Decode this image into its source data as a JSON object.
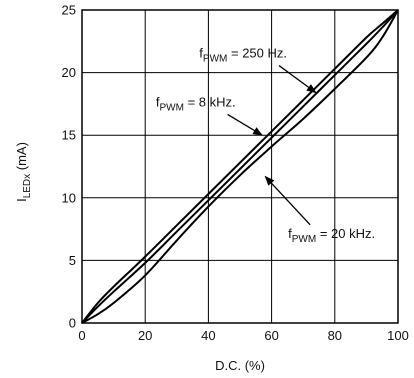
{
  "chart_data": {
    "type": "line",
    "title": "",
    "xlabel": "D.C. (%)",
    "ylabel": {
      "main": "I",
      "sub": "LEDx",
      "unit": " (mA)"
    },
    "xlim": [
      0,
      100
    ],
    "ylim": [
      0,
      25
    ],
    "xticks": [
      0,
      20,
      40,
      60,
      80,
      100
    ],
    "yticks": [
      0,
      5,
      10,
      15,
      20,
      25
    ],
    "grid": true,
    "series": [
      {
        "x": [
          0,
          5,
          10,
          20,
          30,
          40,
          50,
          60,
          70,
          80,
          90,
          95,
          100
        ],
        "y": [
          0,
          1.6,
          2.9,
          5.3,
          7.8,
          10.3,
          12.8,
          15.3,
          17.8,
          20.3,
          22.8,
          23.9,
          25
        ]
      },
      {
        "x": [
          0,
          5,
          10,
          20,
          30,
          40,
          50,
          60,
          70,
          80,
          90,
          95,
          100
        ],
        "y": [
          0,
          1.3,
          2.5,
          4.8,
          7.3,
          9.8,
          12.3,
          14.8,
          17.3,
          19.8,
          22.3,
          23.6,
          25
        ]
      },
      {
        "x": [
          0,
          5,
          10,
          20,
          30,
          40,
          50,
          60,
          70,
          80,
          90,
          95,
          100
        ],
        "y": [
          0,
          0.7,
          1.6,
          3.8,
          6.6,
          9.3,
          11.8,
          14.1,
          16.3,
          18.7,
          21.2,
          22.8,
          25
        ]
      }
    ],
    "annotations": [
      {
        "main": "f",
        "sub": "PWM",
        "text": " = 250 Hz.",
        "label_at": [
          51,
          21.2
        ],
        "arrow_to": [
          74,
          18.4
        ]
      },
      {
        "main": "f",
        "sub": "PWM",
        "text": " = 8 kHz.",
        "label_at": [
          36,
          17.3
        ],
        "arrow_to": [
          57,
          15.0
        ]
      },
      {
        "main": "f",
        "sub": "PWM",
        "text": " = 20 kHz.",
        "label_at": [
          79,
          6.8
        ],
        "arrow_to": [
          58,
          11.7
        ]
      }
    ]
  }
}
